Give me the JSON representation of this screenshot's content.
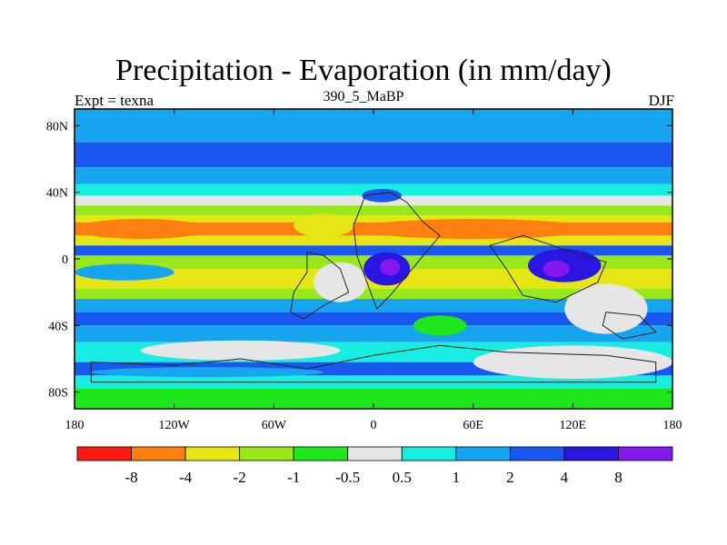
{
  "header": {
    "title": "Precipitation - Evaporation (in mm/day)",
    "subtitle": "390_5_MaBP",
    "left_string": "Expt = texna",
    "right_string": "DJF"
  },
  "chart_data": {
    "type": "heatmap",
    "title": "Precipitation - Evaporation (in mm/day)",
    "xlim": [
      -180,
      180
    ],
    "ylim": [
      -90,
      90
    ],
    "x_ticks": [
      {
        "value": -180,
        "label": "180"
      },
      {
        "value": -120,
        "label": "120W"
      },
      {
        "value": -60,
        "label": "60W"
      },
      {
        "value": 0,
        "label": "0"
      },
      {
        "value": 60,
        "label": "60E"
      },
      {
        "value": 120,
        "label": "120E"
      },
      {
        "value": 180,
        "label": "180"
      }
    ],
    "y_ticks": [
      {
        "value": 80,
        "label": "80N"
      },
      {
        "value": 40,
        "label": "40N"
      },
      {
        "value": 0,
        "label": "0"
      },
      {
        "value": -40,
        "label": "40S"
      },
      {
        "value": -80,
        "label": "80S"
      }
    ],
    "colorbar": {
      "levels": [
        "-8",
        "-4",
        "-2",
        "-1",
        "-0.5",
        "0.5",
        "1",
        "2",
        "4",
        "8"
      ],
      "colors": [
        "#ff1a10",
        "#ff8010",
        "#e6e617",
        "#98e81c",
        "#1ee81c",
        "#e6e6e6",
        "#17eee1",
        "#18a5f0",
        "#1a57f0",
        "#2a16e0",
        "#8418ee"
      ]
    },
    "bands": [
      {
        "lat": [
          70,
          90
        ],
        "color": "#18a5f0"
      },
      {
        "lat": [
          55,
          70
        ],
        "color": "#1a57f0"
      },
      {
        "lat": [
          45,
          55
        ],
        "color": "#18a5f0"
      },
      {
        "lat": [
          38,
          45
        ],
        "color": "#17eee1"
      },
      {
        "lat": [
          32,
          38
        ],
        "color": "#e6e6e6"
      },
      {
        "lat": [
          26,
          32
        ],
        "color": "#98e81c"
      },
      {
        "lat": [
          22,
          26
        ],
        "color": "#e6e617"
      },
      {
        "lat": [
          14,
          22
        ],
        "color": "#ff8010"
      },
      {
        "lat": [
          8,
          14
        ],
        "color": "#e6e617"
      },
      {
        "lat": [
          2,
          8
        ],
        "color": "#1a57f0"
      },
      {
        "lat": [
          -6,
          2
        ],
        "color": "#98e81c"
      },
      {
        "lat": [
          -18,
          -6
        ],
        "color": "#e6e617"
      },
      {
        "lat": [
          -24,
          -18
        ],
        "color": "#98e81c"
      },
      {
        "lat": [
          -32,
          -24
        ],
        "color": "#18a5f0"
      },
      {
        "lat": [
          -40,
          -32
        ],
        "color": "#1a57f0"
      },
      {
        "lat": [
          -50,
          -40
        ],
        "color": "#18a5f0"
      },
      {
        "lat": [
          -62,
          -50
        ],
        "color": "#17eee1"
      },
      {
        "lat": [
          -70,
          -62
        ],
        "color": "#1a57f0"
      },
      {
        "lat": [
          -78,
          -70
        ],
        "color": "#17eee1"
      },
      {
        "lat": [
          -90,
          -78
        ],
        "color": "#1ee81c"
      }
    ],
    "patches": [
      {
        "lon": -140,
        "lat": 18,
        "rx": 40,
        "ry": 6,
        "color": "#ff8010"
      },
      {
        "lon": 60,
        "lat": 18,
        "rx": 70,
        "ry": 6,
        "color": "#ff8010"
      },
      {
        "lon": -30,
        "lat": 20,
        "rx": 18,
        "ry": 7,
        "color": "#e6e617"
      },
      {
        "lon": 5,
        "lat": 38,
        "rx": 12,
        "ry": 4,
        "color": "#1a57f0"
      },
      {
        "lon": 8,
        "lat": -6,
        "rx": 14,
        "ry": 10,
        "color": "#2a16e0"
      },
      {
        "lon": 10,
        "lat": -5,
        "rx": 6,
        "ry": 5,
        "color": "#8418ee"
      },
      {
        "lon": 115,
        "lat": -4,
        "rx": 22,
        "ry": 10,
        "color": "#2a16e0"
      },
      {
        "lon": 110,
        "lat": -6,
        "rx": 8,
        "ry": 5,
        "color": "#8418ee"
      },
      {
        "lon": -150,
        "lat": -8,
        "rx": 30,
        "ry": 5,
        "color": "#18a5f0"
      },
      {
        "lon": -20,
        "lat": -14,
        "rx": 16,
        "ry": 12,
        "color": "#e6e6e6"
      },
      {
        "lon": 140,
        "lat": -30,
        "rx": 25,
        "ry": 15,
        "color": "#e6e6e6"
      },
      {
        "lon": 40,
        "lat": -40,
        "rx": 16,
        "ry": 6,
        "color": "#1ee81c"
      },
      {
        "lon": 120,
        "lat": -62,
        "rx": 60,
        "ry": 10,
        "color": "#e6e6e6"
      },
      {
        "lon": -80,
        "lat": -55,
        "rx": 60,
        "ry": 6,
        "color": "#e6e6e6"
      },
      {
        "lon": -100,
        "lat": -68,
        "rx": 70,
        "ry": 3,
        "color": "#18a5f0"
      }
    ],
    "land_outlines": [
      [
        [
          -40,
          4
        ],
        [
          -30,
          2
        ],
        [
          -20,
          -6
        ],
        [
          -15,
          -20
        ],
        [
          -30,
          -28
        ],
        [
          -42,
          -36
        ],
        [
          -50,
          -32
        ],
        [
          -48,
          -20
        ],
        [
          -40,
          -8
        ]
      ],
      [
        [
          -5,
          38
        ],
        [
          10,
          40
        ],
        [
          20,
          34
        ],
        [
          30,
          22
        ],
        [
          40,
          14
        ],
        [
          30,
          2
        ],
        [
          20,
          -10
        ],
        [
          10,
          -22
        ],
        [
          2,
          -30
        ],
        [
          -4,
          -14
        ],
        [
          -10,
          2
        ],
        [
          -12,
          20
        ]
      ],
      [
        [
          70,
          8
        ],
        [
          90,
          14
        ],
        [
          120,
          4
        ],
        [
          140,
          -2
        ],
        [
          135,
          -14
        ],
        [
          110,
          -26
        ],
        [
          90,
          -22
        ],
        [
          80,
          -6
        ]
      ],
      [
        [
          140,
          -32
        ],
        [
          160,
          -34
        ],
        [
          170,
          -44
        ],
        [
          150,
          -48
        ],
        [
          138,
          -40
        ]
      ],
      [
        [
          -170,
          -62
        ],
        [
          -120,
          -64
        ],
        [
          -80,
          -60
        ],
        [
          -40,
          -66
        ],
        [
          0,
          -58
        ],
        [
          40,
          -52
        ],
        [
          80,
          -56
        ],
        [
          140,
          -58
        ],
        [
          170,
          -62
        ],
        [
          170,
          -74
        ],
        [
          -170,
          -74
        ]
      ]
    ]
  }
}
